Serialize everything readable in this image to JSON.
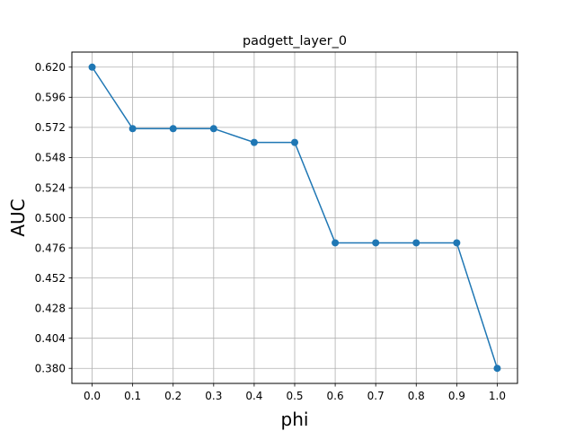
{
  "chart_data": {
    "type": "line",
    "title": "padgett_layer_0",
    "xlabel": "phi",
    "ylabel": "AUC",
    "x": [
      0.0,
      0.1,
      0.2,
      0.3,
      0.4,
      0.5,
      0.6,
      0.7,
      0.8,
      0.9,
      1.0
    ],
    "series": [
      {
        "values": [
          0.62,
          0.571,
          0.571,
          0.571,
          0.56,
          0.56,
          0.48,
          0.48,
          0.48,
          0.48,
          0.38
        ],
        "color": "#1f77b4",
        "marker": "circle"
      }
    ],
    "xticks": [
      "0.0",
      "0.1",
      "0.2",
      "0.3",
      "0.4",
      "0.5",
      "0.6",
      "0.7",
      "0.8",
      "0.9",
      "1.0"
    ],
    "yticks": [
      "0.380",
      "0.404",
      "0.428",
      "0.452",
      "0.476",
      "0.500",
      "0.524",
      "0.548",
      "0.572",
      "0.596",
      "0.620"
    ],
    "xlim": [
      -0.05,
      1.05
    ],
    "ylim": [
      0.368,
      0.632
    ],
    "grid": true
  }
}
